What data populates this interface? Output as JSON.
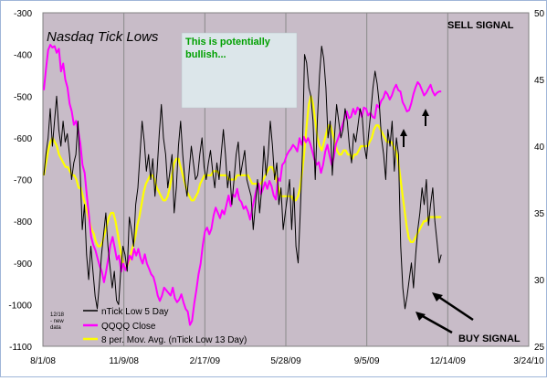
{
  "chart_data": {
    "type": "line",
    "title": "Nasdaq Tick Lows",
    "annotation_box": [
      "This is potentially",
      "bullish..."
    ],
    "sell_signal": "SELL SIGNAL",
    "buy_signal": "BUY SIGNAL",
    "new_data_note": [
      "12/18",
      "- new",
      "data"
    ],
    "x_ticks": [
      "8/1/08",
      "11/9/08",
      "2/17/09",
      "5/28/09",
      "9/5/09",
      "12/14/09",
      "3/24/10"
    ],
    "y_left_ticks": [
      "-300",
      "-400",
      "-500",
      "-600",
      "-700",
      "-800",
      "-900",
      "-1000",
      "-1100"
    ],
    "y_right_ticks": [
      "50",
      "45",
      "40",
      "35",
      "30",
      "25"
    ],
    "y_left_range": [
      -1100,
      -300
    ],
    "y_right_range": [
      25,
      50
    ],
    "plot_background": "#c8bcc8",
    "grid": "vertical",
    "legend_position": "bottom-left",
    "legend": [
      {
        "name": "nTick Low 5 Day",
        "color": "#000000"
      },
      {
        "name": "QQQQ Close",
        "color": "#ff00ff"
      },
      {
        "name": "8 per. Mov. Avg. (nTick Low 13 Day)",
        "color": "#ffff00"
      }
    ],
    "series": [
      {
        "name": "nTick Low 5 Day",
        "axis": "left",
        "color": "#000000",
        "values": [
          -690,
          -640,
          -600,
          -530,
          -620,
          -560,
          -500,
          -580,
          -620,
          -560,
          -610,
          -590,
          -640,
          -700,
          -660,
          -640,
          -560,
          -680,
          -820,
          -760,
          -880,
          -940,
          -860,
          -920,
          -980,
          -1010,
          -950,
          -880,
          -830,
          -780,
          -860,
          -910,
          -960,
          -920,
          -990,
          -1000,
          -920,
          -860,
          -880,
          -920,
          -790,
          -820,
          -860,
          -760,
          -720,
          -640,
          -560,
          -610,
          -680,
          -640,
          -700,
          -650,
          -740,
          -680,
          -590,
          -520,
          -600,
          -640,
          -720,
          -680,
          -640,
          -780,
          -720,
          -620,
          -560,
          -640,
          -700,
          -740,
          -680,
          -620,
          -660,
          -700,
          -690,
          -640,
          -600,
          -670,
          -700,
          -660,
          -630,
          -680,
          -720,
          -660,
          -700,
          -640,
          -580,
          -640,
          -720,
          -680,
          -760,
          -700,
          -640,
          -610,
          -690,
          -660,
          -630,
          -700,
          -720,
          -740,
          -820,
          -760,
          -700,
          -780,
          -720,
          -620,
          -690,
          -640,
          -560,
          -620,
          -700,
          -660,
          -760,
          -720,
          -820,
          -780,
          -740,
          -700,
          -820,
          -720,
          -860,
          -900,
          -780,
          -640,
          -400,
          -420,
          -480,
          -500,
          -560,
          -700,
          -560,
          -450,
          -380,
          -410,
          -480,
          -600,
          -560,
          -690,
          -600,
          -520,
          -560,
          -600,
          -580,
          -530,
          -560,
          -620,
          -660,
          -590,
          -610,
          -570,
          -530,
          -550,
          -620,
          -650,
          -590,
          -540,
          -480,
          -440,
          -470,
          -520,
          -600,
          -640,
          -700,
          -580,
          -620,
          -560,
          -680,
          -600,
          -640,
          -860,
          -960,
          -1010,
          -980,
          -940,
          -900,
          -960,
          -880,
          -820,
          -780,
          -720,
          -760,
          -700,
          -810,
          -760,
          -720,
          -800,
          -850,
          -900,
          -880
        ]
      },
      {
        "name": "QQQQ Close",
        "axis": "right",
        "color": "#ff00ff",
        "values": [
          44.2,
          45.8,
          47.2,
          47.6,
          47.4,
          47.5,
          47.0,
          47.3,
          45.6,
          46.2,
          45.0,
          44.4,
          43.2,
          42.6,
          41.6,
          41.9,
          41.2,
          40.2,
          38.6,
          38.0,
          36.3,
          34.8,
          33.2,
          32.6,
          32.2,
          31.6,
          31.0,
          30.6,
          29.8,
          30.6,
          31.6,
          32.6,
          33.2,
          32.4,
          31.5,
          31.8,
          30.6,
          31.2,
          30.7,
          31.2,
          31.8,
          31.5,
          32.3,
          31.8,
          32.3,
          31.6,
          31.2,
          31.9,
          31.2,
          30.8,
          30.4,
          30.2,
          29.6,
          28.8,
          28.4,
          28.8,
          29.4,
          29.2,
          29.0,
          28.8,
          29.4,
          28.6,
          28.3,
          28.5,
          28.9,
          28.3,
          27.8,
          27.6,
          26.6,
          26.9,
          28.2,
          29.2,
          30.4,
          31.2,
          32.6,
          33.6,
          33.9,
          33.4,
          33.8,
          34.8,
          35.4,
          35.0,
          34.6,
          35.2,
          34.9,
          35.6,
          36.3,
          35.5,
          36.4,
          36.2,
          36.8,
          36.0,
          35.8,
          35.3,
          35.5,
          35.1,
          34.5,
          35.3,
          36.1,
          36.8,
          37.2,
          36.4,
          36.8,
          37.3,
          36.8,
          37.4,
          37.0,
          36.3,
          36.0,
          37.6,
          37.4,
          38.6,
          38.8,
          39.3,
          39.6,
          39.8,
          40.1,
          39.9,
          39.6,
          40.6,
          40.1,
          40.7,
          40.3,
          40.6,
          40.2,
          39.6,
          39.0,
          38.6,
          38.8,
          38.0,
          38.6,
          39.6,
          40.1,
          39.3,
          38.6,
          39.2,
          40.2,
          40.6,
          41.1,
          41.6,
          42.1,
          42.6,
          42.1,
          42.2,
          42.8,
          42.4,
          42.9,
          42.7,
          42.2,
          42.9,
          42.8,
          42.3,
          42.5,
          42.2,
          42.1,
          43.1,
          42.9,
          43.4,
          43.6,
          44.1,
          43.9,
          43.5,
          43.8,
          44.3,
          44.6,
          44.2,
          44.1,
          43.3,
          43.0,
          42.6,
          42.7,
          43.2,
          43.9,
          44.4,
          44.8,
          44.6,
          44.2,
          43.8,
          44.0,
          44.3,
          44.6,
          44.1,
          43.8,
          44.0,
          44.1,
          44.1
        ]
      },
      {
        "name": "8 per. Mov. Avg. (nTick Low 13 Day)",
        "axis": "left",
        "color": "#ffff00",
        "values": [
          -690,
          -660,
          -630,
          -610,
          -600,
          -610,
          -620,
          -640,
          -650,
          -660,
          -670,
          -670,
          -680,
          -690,
          -690,
          -700,
          -720,
          -720,
          -740,
          -760,
          -780,
          -800,
          -820,
          -830,
          -850,
          -860,
          -860,
          -850,
          -830,
          -810,
          -790,
          -780,
          -780,
          -800,
          -830,
          -860,
          -890,
          -910,
          -910,
          -900,
          -880,
          -860,
          -840,
          -810,
          -790,
          -760,
          -730,
          -710,
          -700,
          -690,
          -690,
          -700,
          -720,
          -730,
          -740,
          -750,
          -750,
          -740,
          -720,
          -690,
          -660,
          -650,
          -650,
          -670,
          -690,
          -710,
          -730,
          -740,
          -750,
          -750,
          -740,
          -730,
          -710,
          -700,
          -690,
          -690,
          -690,
          -690,
          -680,
          -680,
          -680,
          -690,
          -690,
          -690,
          -690,
          -700,
          -700,
          -700,
          -700,
          -690,
          -690,
          -690,
          -690,
          -690,
          -690,
          -700,
          -710,
          -710,
          -710,
          -710,
          -710,
          -700,
          -690,
          -680,
          -670,
          -670,
          -680,
          -700,
          -720,
          -740,
          -740,
          -740,
          -740,
          -740,
          -740,
          -750,
          -750,
          -740,
          -720,
          -680,
          -630,
          -570,
          -520,
          -500,
          -520,
          -560,
          -600,
          -620,
          -630,
          -610,
          -590,
          -570,
          -570,
          -590,
          -610,
          -630,
          -640,
          -640,
          -630,
          -630,
          -640,
          -640,
          -650,
          -640,
          -640,
          -630,
          -620,
          -620,
          -620,
          -620,
          -610,
          -600,
          -580,
          -570,
          -570,
          -580,
          -590,
          -600,
          -610,
          -610,
          -610,
          -620,
          -630,
          -650,
          -690,
          -730,
          -770,
          -810,
          -840,
          -850,
          -850,
          -840,
          -830,
          -820,
          -810,
          -800,
          -800,
          -790,
          -790,
          -790,
          -790,
          -790,
          -790,
          -790
        ]
      }
    ]
  }
}
